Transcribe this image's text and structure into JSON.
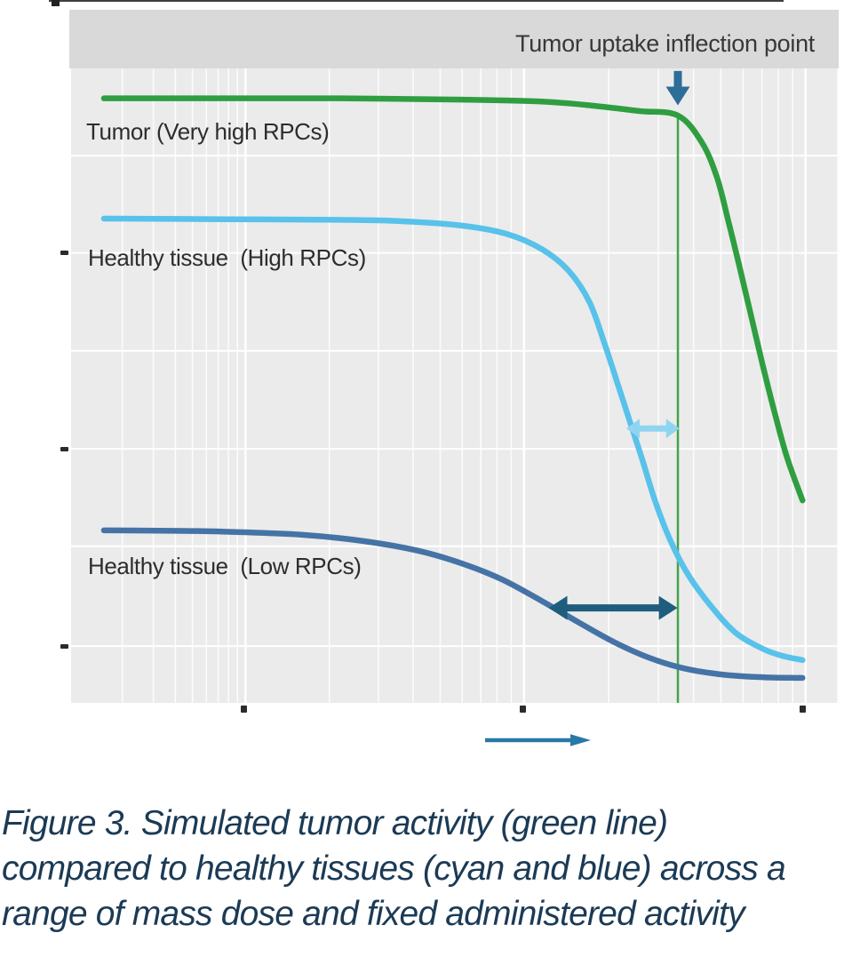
{
  "header": {
    "annotation": "Tumor uptake inflection point"
  },
  "labels": {
    "tumor": "Tumor (Very high RPCs)",
    "healthy_high": "Healthy tissue  (High RPCs)",
    "healthy_low": "Healthy tissue  (Low RPCs)"
  },
  "caption": {
    "lines": [
      "Figure 3. Simulated tumor activity (green line)",
      "compared to healthy tissues (cyan and blue) across a",
      "range of mass dose and fixed administered activity"
    ]
  },
  "colors": {
    "plot_bg": "#ebebeb",
    "band_bg": "#d9d9d9",
    "grid": "#ffffff",
    "green": "#2f9e41",
    "cyan": "#58c2ea",
    "blue": "#4573a6",
    "vline_green": "#43a44a",
    "cyan_gap_arrow": "#90d5ef",
    "dark_gap_arrow": "#1e5d7d",
    "marker_arrow": "#2c6d99",
    "direction_arrow": "#2878a8",
    "tick": "#2b2b2b",
    "caption_text": "#1b3a55"
  },
  "chart_data": {
    "type": "line",
    "title": "",
    "xlabel": "",
    "ylabel": "",
    "x_axis": {
      "scale": "log",
      "tick_labels": [],
      "tick_positions_pct": [
        22.7,
        58.9,
        95.3
      ],
      "note": "unlabeled mass dose axis, increasing to the right"
    },
    "y_axis": {
      "tick_labels": [],
      "tick_positions_pct": [
        71.0,
        40.2,
        9.2
      ],
      "note": "unlabeled uptake/activity axis"
    },
    "gridlines": {
      "horizontal_y_pct": [
        86.3,
        71.0,
        55.6,
        40.2,
        24.9,
        9.2
      ],
      "vertical_decades_pct": [
        0,
        22.9,
        59.1,
        95.7
      ],
      "grid_on": true
    },
    "series": [
      {
        "name": "Tumor (Very high RPCs)",
        "color_key": "green",
        "points": [
          [
            4.5,
            95.3
          ],
          [
            20,
            95.3
          ],
          [
            35,
            95.3
          ],
          [
            51,
            95.1
          ],
          [
            61.4,
            94.8
          ],
          [
            68.4,
            94.1
          ],
          [
            74.1,
            93.3
          ],
          [
            79.1,
            92.6
          ],
          [
            82.2,
            88.4
          ],
          [
            84.2,
            82.8
          ],
          [
            85.7,
            75.8
          ],
          [
            87.1,
            68.9
          ],
          [
            88.6,
            61.2
          ],
          [
            90.1,
            53.5
          ],
          [
            91.7,
            45.8
          ],
          [
            93.3,
            38.8
          ],
          [
            95.3,
            32.1
          ]
        ]
      },
      {
        "name": "Healthy tissue (High RPCs)",
        "color_key": "cyan",
        "points": [
          [
            4.5,
            76.4
          ],
          [
            20,
            76.3
          ],
          [
            35,
            76.2
          ],
          [
            43,
            76.0
          ],
          [
            51,
            75.3
          ],
          [
            56.8,
            74.0
          ],
          [
            61.4,
            71.6
          ],
          [
            64.9,
            68.2
          ],
          [
            67.6,
            63.3
          ],
          [
            69.5,
            57.0
          ],
          [
            71.2,
            50.7
          ],
          [
            72.7,
            45.1
          ],
          [
            74.4,
            38.8
          ],
          [
            76.2,
            31.8
          ],
          [
            78.2,
            25.6
          ],
          [
            80.5,
            20.3
          ],
          [
            83.4,
            15.5
          ],
          [
            86.6,
            11.3
          ],
          [
            90.1,
            8.8
          ],
          [
            92.6,
            7.7
          ],
          [
            95.3,
            7.0
          ]
        ]
      },
      {
        "name": "Healthy tissue (Low RPCs)",
        "color_key": "blue",
        "points": [
          [
            4.5,
            27.4
          ],
          [
            15,
            27.3
          ],
          [
            19.9,
            27.2
          ],
          [
            30.3,
            26.7
          ],
          [
            38.3,
            25.7
          ],
          [
            45.3,
            24.2
          ],
          [
            51.0,
            22.2
          ],
          [
            56.2,
            19.7
          ],
          [
            61.4,
            16.3
          ],
          [
            66.1,
            13.0
          ],
          [
            70.7,
            9.9
          ],
          [
            75.3,
            7.4
          ],
          [
            79.9,
            5.7
          ],
          [
            85.1,
            4.7
          ],
          [
            90.3,
            4.3
          ],
          [
            95.3,
            4.2
          ]
        ]
      }
    ],
    "annotations": {
      "inflection_vline": {
        "x_pct": 79.1,
        "y_top_pct": 92.6
      },
      "inflection_down_arrow": {
        "x_pct": 79.1,
        "tip_y_pct": 94.2,
        "tail_y_pct": 99.6
      },
      "gap_arrow_high_rpc": {
        "x1_pct": 72.4,
        "x2_pct": 79.3,
        "y_pct": 43.4,
        "style": "double-headed"
      },
      "gap_arrow_low_rpc": {
        "x1_pct": 62.3,
        "x2_pct": 79.05,
        "y_pct": 15.2,
        "style": "double-headed"
      },
      "x_axis_direction_arrow": {
        "present": true,
        "direction": "right"
      }
    }
  }
}
